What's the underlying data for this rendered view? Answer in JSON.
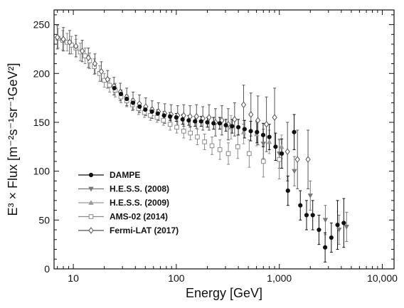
{
  "chart_data": {
    "type": "scatter",
    "title": "",
    "xlabel": "Energy [GeV]",
    "ylabel": "E³ × Flux [m⁻²s⁻¹sr⁻¹GeV²]",
    "x_scale": "log",
    "xlim": [
      6.5,
      13000
    ],
    "ylim": [
      0,
      265
    ],
    "x_ticks": [
      10,
      100,
      1000,
      10000
    ],
    "x_tick_labels": [
      "10",
      "100",
      "1,000",
      "10,000"
    ],
    "y_ticks": [
      0,
      50,
      100,
      150,
      200,
      250
    ],
    "y_tick_labels": [
      "0",
      "50",
      "100",
      "150",
      "200",
      "250"
    ],
    "grid": false,
    "legend_position": "bottom-left",
    "series": [
      {
        "name": "DAMPE",
        "color": "#111111",
        "marker": "filled-circle",
        "points": [
          {
            "x": 25,
            "y": 185,
            "err": 4
          },
          {
            "x": 29,
            "y": 179,
            "err": 4
          },
          {
            "x": 33,
            "y": 174,
            "err": 4
          },
          {
            "x": 38,
            "y": 170,
            "err": 4
          },
          {
            "x": 44,
            "y": 166,
            "err": 4
          },
          {
            "x": 50,
            "y": 163,
            "err": 4
          },
          {
            "x": 58,
            "y": 161,
            "err": 4
          },
          {
            "x": 66,
            "y": 159,
            "err": 4
          },
          {
            "x": 76,
            "y": 157,
            "err": 4
          },
          {
            "x": 87,
            "y": 156,
            "err": 4
          },
          {
            "x": 100,
            "y": 155,
            "err": 4
          },
          {
            "x": 115,
            "y": 153,
            "err": 5
          },
          {
            "x": 132,
            "y": 152,
            "err": 5
          },
          {
            "x": 152,
            "y": 151,
            "err": 5
          },
          {
            "x": 174,
            "y": 151,
            "err": 5
          },
          {
            "x": 200,
            "y": 150,
            "err": 5
          },
          {
            "x": 230,
            "y": 149,
            "err": 6
          },
          {
            "x": 264,
            "y": 149,
            "err": 6
          },
          {
            "x": 303,
            "y": 147,
            "err": 6
          },
          {
            "x": 348,
            "y": 146,
            "err": 7
          },
          {
            "x": 400,
            "y": 145,
            "err": 8
          },
          {
            "x": 460,
            "y": 143,
            "err": 9
          },
          {
            "x": 528,
            "y": 141,
            "err": 10
          },
          {
            "x": 607,
            "y": 140,
            "err": 11
          },
          {
            "x": 697,
            "y": 137,
            "err": 12
          },
          {
            "x": 800,
            "y": 135,
            "err": 13
          },
          {
            "x": 920,
            "y": 125,
            "err": 14
          },
          {
            "x": 1056,
            "y": 118,
            "err": 15
          },
          {
            "x": 1212,
            "y": 80,
            "err": 15
          },
          {
            "x": 1393,
            "y": 140,
            "err": 18
          },
          {
            "x": 1600,
            "y": 65,
            "err": 15
          },
          {
            "x": 1838,
            "y": 55,
            "err": 15
          },
          {
            "x": 2111,
            "y": 55,
            "err": 15
          },
          {
            "x": 2425,
            "y": 40,
            "err": 15
          },
          {
            "x": 2785,
            "y": 22,
            "err": 15
          },
          {
            "x": 3200,
            "y": 32,
            "err": 15
          },
          {
            "x": 3674,
            "y": 45,
            "err": 25
          },
          {
            "x": 4225,
            "y": 47,
            "err": 25
          }
        ]
      },
      {
        "name": "H.E.S.S. (2008)",
        "color": "#777777",
        "marker": "down-triangle",
        "points": [
          {
            "x": 700,
            "y": 128,
            "err": 15
          },
          {
            "x": 1000,
            "y": 118,
            "err": 15
          },
          {
            "x": 1400,
            "y": 100,
            "err": 15
          },
          {
            "x": 2000,
            "y": 75,
            "err": 15
          },
          {
            "x": 2800,
            "y": 50,
            "err": 15
          },
          {
            "x": 3800,
            "y": 40,
            "err": 15
          },
          {
            "x": 4500,
            "y": 43,
            "err": 15
          }
        ]
      },
      {
        "name": "H.E.S.S. (2009)",
        "color": "#9a9a9a",
        "marker": "up-triangle",
        "points": [
          {
            "x": 340,
            "y": 145,
            "err": 12
          },
          {
            "x": 450,
            "y": 140,
            "err": 12
          },
          {
            "x": 600,
            "y": 138,
            "err": 12
          },
          {
            "x": 800,
            "y": 130,
            "err": 12
          },
          {
            "x": 1050,
            "y": 125,
            "err": 12
          }
        ]
      },
      {
        "name": "AMS-02 (2014)",
        "color": "#8a8a8a",
        "marker": "open-square",
        "points": [
          {
            "x": 7.1,
            "y": 236,
            "err": 10
          },
          {
            "x": 7.9,
            "y": 234,
            "err": 10
          },
          {
            "x": 8.7,
            "y": 232,
            "err": 9
          },
          {
            "x": 9.6,
            "y": 229,
            "err": 9
          },
          {
            "x": 10.6,
            "y": 226,
            "err": 9
          },
          {
            "x": 11.7,
            "y": 222,
            "err": 9
          },
          {
            "x": 13,
            "y": 218,
            "err": 8
          },
          {
            "x": 14.4,
            "y": 213,
            "err": 8
          },
          {
            "x": 16,
            "y": 207,
            "err": 8
          },
          {
            "x": 18,
            "y": 200,
            "err": 8
          },
          {
            "x": 20,
            "y": 193,
            "err": 7
          },
          {
            "x": 22.5,
            "y": 188,
            "err": 7
          },
          {
            "x": 25.5,
            "y": 183,
            "err": 7
          },
          {
            "x": 29,
            "y": 176,
            "err": 6
          },
          {
            "x": 33,
            "y": 172,
            "err": 6
          },
          {
            "x": 37.5,
            "y": 168,
            "err": 6
          },
          {
            "x": 43,
            "y": 164,
            "err": 6
          },
          {
            "x": 49,
            "y": 160,
            "err": 5
          },
          {
            "x": 56,
            "y": 157,
            "err": 5
          },
          {
            "x": 65,
            "y": 155,
            "err": 5
          },
          {
            "x": 75,
            "y": 152,
            "err": 5
          },
          {
            "x": 87,
            "y": 148,
            "err": 6
          },
          {
            "x": 101,
            "y": 145,
            "err": 6
          },
          {
            "x": 118,
            "y": 141,
            "err": 7
          },
          {
            "x": 137,
            "y": 139,
            "err": 7
          },
          {
            "x": 160,
            "y": 135,
            "err": 8
          },
          {
            "x": 188,
            "y": 130,
            "err": 8
          },
          {
            "x": 222,
            "y": 126,
            "err": 9
          },
          {
            "x": 265,
            "y": 122,
            "err": 10
          },
          {
            "x": 320,
            "y": 118,
            "err": 11
          },
          {
            "x": 395,
            "y": 125,
            "err": 12
          },
          {
            "x": 510,
            "y": 118,
            "err": 14
          },
          {
            "x": 700,
            "y": 110,
            "err": 16
          },
          {
            "x": 1000,
            "y": 112,
            "err": 20
          }
        ]
      },
      {
        "name": "Fermi-LAT (2017)",
        "color": "#555555",
        "marker": "open-diamond",
        "points": [
          {
            "x": 7,
            "y": 237,
            "err": 12
          },
          {
            "x": 8,
            "y": 235,
            "err": 12
          },
          {
            "x": 9.2,
            "y": 232,
            "err": 12
          },
          {
            "x": 10.6,
            "y": 228,
            "err": 11
          },
          {
            "x": 12.2,
            "y": 223,
            "err": 11
          },
          {
            "x": 14,
            "y": 216,
            "err": 10
          },
          {
            "x": 16.2,
            "y": 210,
            "err": 10
          },
          {
            "x": 18.7,
            "y": 202,
            "err": 10
          },
          {
            "x": 21.5,
            "y": 194,
            "err": 9
          },
          {
            "x": 24.8,
            "y": 187,
            "err": 9
          },
          {
            "x": 28.6,
            "y": 181,
            "err": 9
          },
          {
            "x": 33,
            "y": 176,
            "err": 9
          },
          {
            "x": 38,
            "y": 172,
            "err": 9
          },
          {
            "x": 43.8,
            "y": 169,
            "err": 9
          },
          {
            "x": 50.5,
            "y": 166,
            "err": 9
          },
          {
            "x": 58.2,
            "y": 163,
            "err": 9
          },
          {
            "x": 67,
            "y": 161,
            "err": 9
          },
          {
            "x": 77.3,
            "y": 159,
            "err": 10
          },
          {
            "x": 89,
            "y": 158,
            "err": 10
          },
          {
            "x": 103,
            "y": 157,
            "err": 10
          },
          {
            "x": 118,
            "y": 157,
            "err": 11
          },
          {
            "x": 136,
            "y": 156,
            "err": 11
          },
          {
            "x": 157,
            "y": 156,
            "err": 12
          },
          {
            "x": 181,
            "y": 154,
            "err": 12
          },
          {
            "x": 208,
            "y": 155,
            "err": 13
          },
          {
            "x": 240,
            "y": 150,
            "err": 14
          },
          {
            "x": 277,
            "y": 152,
            "err": 15
          },
          {
            "x": 319,
            "y": 148,
            "err": 16
          },
          {
            "x": 368,
            "y": 153,
            "err": 17
          },
          {
            "x": 450,
            "y": 168,
            "err": 20
          },
          {
            "x": 530,
            "y": 158,
            "err": 22
          },
          {
            "x": 620,
            "y": 152,
            "err": 25
          },
          {
            "x": 750,
            "y": 148,
            "err": 28
          },
          {
            "x": 900,
            "y": 155,
            "err": 30
          },
          {
            "x": 1200,
            "y": 120,
            "err": 30
          },
          {
            "x": 1500,
            "y": 112,
            "err": 30
          },
          {
            "x": 1900,
            "y": 112,
            "err": 30
          }
        ]
      }
    ]
  }
}
